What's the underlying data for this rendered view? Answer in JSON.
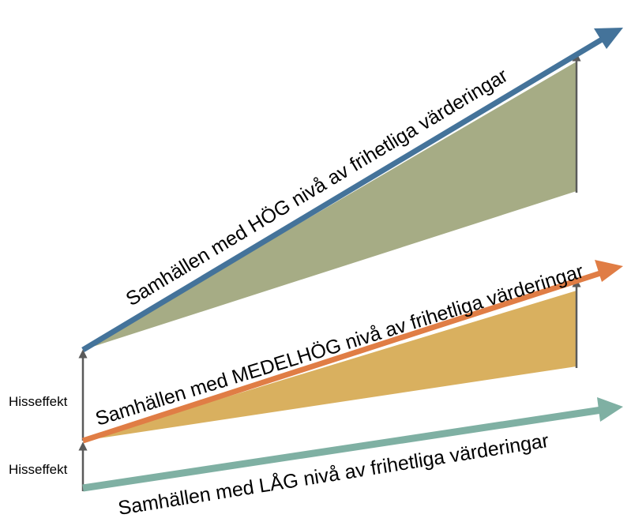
{
  "colors": {
    "high_arrow": "#44739A",
    "high_fill": "#A6AC85",
    "medium_arrow": "#E07D45",
    "medium_fill": "#D9B05F",
    "low_arrow": "#7FB0A3",
    "gap_arrow": "#5A5A5A"
  },
  "labels": {
    "high": "Samhällen med HÖG nivå av frihetliga värderingar",
    "medium": "Samhällen med MEDELHÖG nivå av frihetliga värderingar",
    "low": "Samhällen med LÅG nivå av frihetliga värderingar",
    "lift_upper": "Hisseffekt",
    "lift_lower": "Hisseffekt"
  }
}
